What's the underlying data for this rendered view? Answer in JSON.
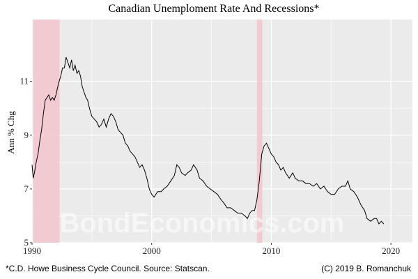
{
  "chart_data": {
    "type": "line",
    "title": "Canadian Unemploment Rate And Recessions*",
    "ylabel": "Ann % Chg",
    "xlabel": "",
    "xlim": [
      1990,
      2021.8
    ],
    "ylim": [
      5,
      13.3
    ],
    "xticks": [
      1990,
      2000,
      2010,
      2020
    ],
    "xtick_labels": [
      "1990",
      "2000",
      "2010",
      "2020"
    ],
    "yticks": [
      5,
      7,
      9,
      11
    ],
    "ytick_labels": [
      "5",
      "7",
      "9",
      "11"
    ],
    "grid": true,
    "recessions": [
      {
        "start": 1990.1,
        "end": 1992.3
      },
      {
        "start": 2008.8,
        "end": 2009.25
      }
    ],
    "series": [
      {
        "values": [
          [
            1990.0,
            7.9
          ],
          [
            1990.1,
            7.4
          ],
          [
            1990.2,
            7.6
          ],
          [
            1990.35,
            8.0
          ],
          [
            1990.5,
            8.3
          ],
          [
            1990.65,
            8.8
          ],
          [
            1990.8,
            9.2
          ],
          [
            1990.95,
            9.8
          ],
          [
            1991.1,
            10.3
          ],
          [
            1991.25,
            10.4
          ],
          [
            1991.4,
            10.5
          ],
          [
            1991.55,
            10.3
          ],
          [
            1991.7,
            10.4
          ],
          [
            1991.85,
            10.3
          ],
          [
            1992.0,
            10.5
          ],
          [
            1992.2,
            10.9
          ],
          [
            1992.4,
            11.2
          ],
          [
            1992.55,
            11.5
          ],
          [
            1992.7,
            11.5
          ],
          [
            1992.85,
            11.9
          ],
          [
            1993.0,
            11.7
          ],
          [
            1993.15,
            11.5
          ],
          [
            1993.3,
            11.8
          ],
          [
            1993.45,
            11.4
          ],
          [
            1993.6,
            11.6
          ],
          [
            1993.75,
            11.3
          ],
          [
            1993.9,
            11.4
          ],
          [
            1994.05,
            11.2
          ],
          [
            1994.2,
            10.8
          ],
          [
            1994.35,
            10.6
          ],
          [
            1994.5,
            10.4
          ],
          [
            1994.65,
            10.3
          ],
          [
            1994.8,
            10.0
          ],
          [
            1995.0,
            9.7
          ],
          [
            1995.2,
            9.6
          ],
          [
            1995.4,
            9.5
          ],
          [
            1995.6,
            9.3
          ],
          [
            1995.8,
            9.4
          ],
          [
            1996.0,
            9.6
          ],
          [
            1996.2,
            9.3
          ],
          [
            1996.4,
            9.6
          ],
          [
            1996.6,
            9.8
          ],
          [
            1996.8,
            9.7
          ],
          [
            1997.0,
            9.5
          ],
          [
            1997.2,
            9.2
          ],
          [
            1997.4,
            9.1
          ],
          [
            1997.6,
            9.0
          ],
          [
            1997.8,
            8.7
          ],
          [
            1998.0,
            8.6
          ],
          [
            1998.2,
            8.4
          ],
          [
            1998.4,
            8.3
          ],
          [
            1998.6,
            8.2
          ],
          [
            1998.8,
            8.0
          ],
          [
            1999.0,
            7.8
          ],
          [
            1999.2,
            7.9
          ],
          [
            1999.4,
            7.7
          ],
          [
            1999.6,
            7.4
          ],
          [
            1999.8,
            7.0
          ],
          [
            2000.0,
            6.8
          ],
          [
            2000.2,
            6.7
          ],
          [
            2000.5,
            6.9
          ],
          [
            2000.8,
            6.9
          ],
          [
            2001.0,
            7.0
          ],
          [
            2001.3,
            7.1
          ],
          [
            2001.6,
            7.3
          ],
          [
            2001.9,
            7.5
          ],
          [
            2002.1,
            7.9
          ],
          [
            2002.3,
            7.8
          ],
          [
            2002.5,
            7.6
          ],
          [
            2002.8,
            7.5
          ],
          [
            2003.0,
            7.6
          ],
          [
            2003.3,
            7.7
          ],
          [
            2003.5,
            7.9
          ],
          [
            2003.8,
            7.7
          ],
          [
            2004.0,
            7.4
          ],
          [
            2004.3,
            7.3
          ],
          [
            2004.6,
            7.1
          ],
          [
            2004.9,
            7.0
          ],
          [
            2005.2,
            6.9
          ],
          [
            2005.5,
            6.8
          ],
          [
            2005.8,
            6.6
          ],
          [
            2006.0,
            6.5
          ],
          [
            2006.3,
            6.3
          ],
          [
            2006.6,
            6.3
          ],
          [
            2006.9,
            6.2
          ],
          [
            2007.2,
            6.1
          ],
          [
            2007.5,
            6.1
          ],
          [
            2007.8,
            6.0
          ],
          [
            2008.0,
            5.9
          ],
          [
            2008.2,
            6.1
          ],
          [
            2008.4,
            6.2
          ],
          [
            2008.6,
            6.2
          ],
          [
            2008.8,
            6.6
          ],
          [
            2009.0,
            7.3
          ],
          [
            2009.2,
            8.3
          ],
          [
            2009.4,
            8.6
          ],
          [
            2009.6,
            8.7
          ],
          [
            2009.8,
            8.5
          ],
          [
            2010.0,
            8.3
          ],
          [
            2010.2,
            8.2
          ],
          [
            2010.4,
            8.0
          ],
          [
            2010.6,
            7.9
          ],
          [
            2010.8,
            7.7
          ],
          [
            2011.0,
            7.8
          ],
          [
            2011.2,
            7.6
          ],
          [
            2011.5,
            7.4
          ],
          [
            2011.8,
            7.6
          ],
          [
            2012.0,
            7.4
          ],
          [
            2012.3,
            7.3
          ],
          [
            2012.6,
            7.3
          ],
          [
            2012.9,
            7.2
          ],
          [
            2013.2,
            7.2
          ],
          [
            2013.5,
            7.1
          ],
          [
            2013.8,
            7.2
          ],
          [
            2014.1,
            7.0
          ],
          [
            2014.4,
            7.1
          ],
          [
            2014.7,
            6.9
          ],
          [
            2015.0,
            6.8
          ],
          [
            2015.3,
            6.8
          ],
          [
            2015.6,
            7.0
          ],
          [
            2015.9,
            7.1
          ],
          [
            2016.2,
            7.1
          ],
          [
            2016.4,
            7.3
          ],
          [
            2016.6,
            7.0
          ],
          [
            2016.9,
            6.9
          ],
          [
            2017.2,
            6.7
          ],
          [
            2017.5,
            6.4
          ],
          [
            2017.8,
            6.2
          ],
          [
            2018.0,
            5.9
          ],
          [
            2018.3,
            5.8
          ],
          [
            2018.6,
            5.9
          ],
          [
            2018.8,
            5.9
          ],
          [
            2019.0,
            5.7
          ],
          [
            2019.2,
            5.8
          ],
          [
            2019.4,
            5.7
          ]
        ]
      }
    ]
  },
  "watermark": "BondEconomics.com",
  "captions": {
    "left": "*C.D. Howe Business Cycle Council. Source: Statscan.",
    "right": "(C) 2019 B. Romanchuk"
  },
  "colors": {
    "panel": "#ebebeb",
    "grid": "#ffffff",
    "recession": "#f2c6cf",
    "line": "#000000"
  }
}
